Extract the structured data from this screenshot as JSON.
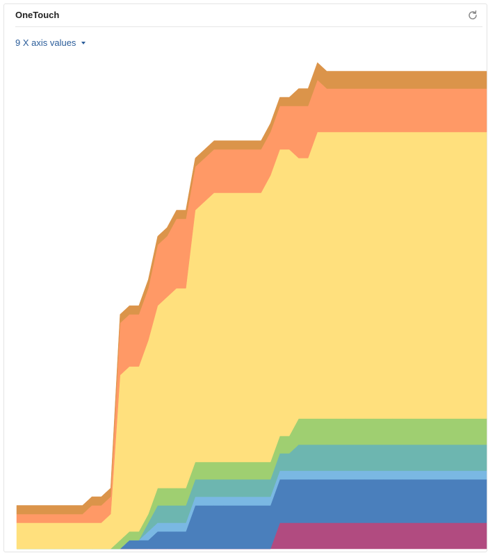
{
  "panel": {
    "title": "OneTouch",
    "refresh_icon": "refresh-icon",
    "axis_selector_label": "9 X axis values",
    "axis_selector_icon": "caret-down-icon"
  },
  "chart_data": {
    "type": "area",
    "stacked": true,
    "title": "",
    "xlabel": "",
    "ylabel": "",
    "grid": false,
    "legend": "none",
    "x": [
      0,
      1,
      2,
      3,
      4,
      5,
      6,
      7,
      8,
      9,
      10,
      11,
      12,
      13,
      14,
      15,
      16,
      17,
      18,
      19,
      20,
      21,
      22,
      23,
      24,
      25,
      26,
      27,
      28,
      29,
      30,
      31,
      32,
      33,
      34,
      35,
      36,
      37,
      38,
      39,
      40,
      41,
      42,
      43,
      44,
      45,
      46,
      47,
      48,
      49,
      50
    ],
    "series": [
      {
        "color": "#b14b80",
        "values": [
          0,
          0,
          0,
          0,
          0,
          0,
          0,
          0,
          0,
          0,
          0,
          0,
          0,
          0,
          0,
          0,
          0,
          0,
          0,
          0,
          0,
          0,
          0,
          0,
          0,
          0,
          0,
          0,
          3,
          3,
          3,
          3,
          3,
          3,
          3,
          3,
          3,
          3,
          3,
          3,
          3,
          3,
          3,
          3,
          3,
          3,
          3,
          3,
          3,
          3,
          3
        ]
      },
      {
        "color": "#4a7fbc",
        "values": [
          0,
          0,
          0,
          0,
          0,
          0,
          0,
          0,
          0,
          0,
          0,
          0,
          1,
          1,
          1,
          2,
          2,
          2,
          2,
          5,
          5,
          5,
          5,
          5,
          5,
          5,
          5,
          5,
          5,
          5,
          5,
          5,
          5,
          5,
          5,
          5,
          5,
          5,
          5,
          5,
          5,
          5,
          5,
          5,
          5,
          5,
          5,
          5,
          5,
          5,
          5
        ]
      },
      {
        "color": "#7ab8e3",
        "values": [
          0,
          0,
          0,
          0,
          0,
          0,
          0,
          0,
          0,
          0,
          0,
          0,
          0,
          0,
          1,
          1,
          1,
          1,
          1,
          1,
          1,
          1,
          1,
          1,
          1,
          1,
          1,
          1,
          1,
          1,
          1,
          1,
          1,
          1,
          1,
          1,
          1,
          1,
          1,
          1,
          1,
          1,
          1,
          1,
          1,
          1,
          1,
          1,
          1,
          1,
          1
        ]
      },
      {
        "color": "#6db6b0",
        "values": [
          0,
          0,
          0,
          0,
          0,
          0,
          0,
          0,
          0,
          0,
          0,
          0,
          0,
          0,
          1,
          2,
          2,
          2,
          2,
          2,
          2,
          2,
          2,
          2,
          2,
          2,
          2,
          2,
          2,
          2,
          3,
          3,
          3,
          3,
          3,
          3,
          3,
          3,
          3,
          3,
          3,
          3,
          3,
          3,
          3,
          3,
          3,
          3,
          3,
          3,
          3
        ]
      },
      {
        "color": "#9fcf71",
        "values": [
          0,
          0,
          0,
          0,
          0,
          0,
          0,
          0,
          0,
          0,
          0,
          1,
          1,
          1,
          1,
          2,
          2,
          2,
          2,
          2,
          2,
          2,
          2,
          2,
          2,
          2,
          2,
          2,
          2,
          2,
          3,
          3,
          3,
          3,
          3,
          3,
          3,
          3,
          3,
          3,
          3,
          3,
          3,
          3,
          3,
          3,
          3,
          3,
          3,
          3,
          3
        ]
      },
      {
        "color": "#ffe07d",
        "values": [
          3,
          3,
          3,
          3,
          3,
          3,
          3,
          3,
          3,
          3,
          4,
          19,
          19,
          19,
          20,
          21,
          22,
          23,
          23,
          29,
          30,
          31,
          31,
          31,
          31,
          31,
          31,
          33,
          33,
          33,
          30,
          30,
          33,
          33,
          33,
          33,
          33,
          33,
          33,
          33,
          33,
          33,
          33,
          33,
          33,
          33,
          33,
          33,
          33,
          33,
          33
        ]
      },
      {
        "color": "#ff9966",
        "values": [
          1,
          1,
          1,
          1,
          1,
          1,
          1,
          1,
          2,
          2,
          2,
          6,
          6,
          6,
          6,
          7,
          7,
          8,
          8,
          5,
          5,
          5,
          5,
          5,
          5,
          5,
          5,
          5,
          5,
          5,
          6,
          6,
          6,
          5,
          5,
          5,
          5,
          5,
          5,
          5,
          5,
          5,
          5,
          5,
          5,
          5,
          5,
          5,
          5,
          5,
          5
        ]
      },
      {
        "color": "#db944a",
        "values": [
          1,
          1,
          1,
          1,
          1,
          1,
          1,
          1,
          1,
          1,
          1,
          1,
          1,
          1,
          1,
          1,
          1,
          1,
          1,
          1,
          1,
          1,
          1,
          1,
          1,
          1,
          1,
          1,
          1,
          1,
          2,
          2,
          2,
          2,
          2,
          2,
          2,
          2,
          2,
          2,
          2,
          2,
          2,
          2,
          2,
          2,
          2,
          2,
          2,
          2,
          2
        ]
      }
    ]
  }
}
